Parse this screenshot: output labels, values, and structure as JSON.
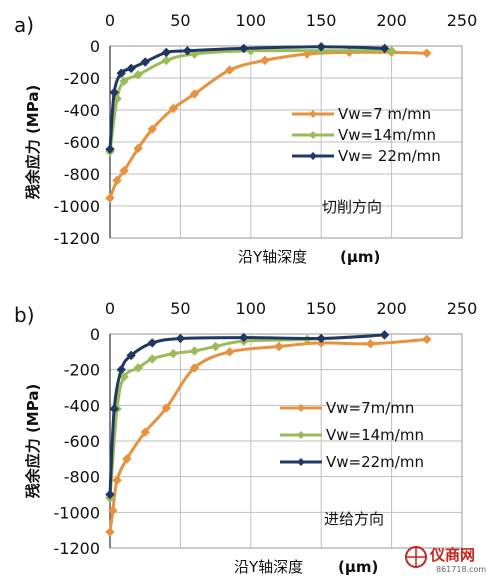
{
  "chart_data": [
    {
      "type": "line",
      "panel_label": "a)",
      "x_ticks": [
        "0",
        "50",
        "100",
        "150",
        "200",
        "250"
      ],
      "y_ticks": [
        "0",
        "-200",
        "-400",
        "-600",
        "-800",
        "-1000",
        "-1200"
      ],
      "xlim": [
        0,
        250
      ],
      "ylim": [
        -1200,
        0
      ],
      "grid": true,
      "xlabel": "沿Y轴深度",
      "xunit": "(μm)",
      "ylabel": "残余应力 (MPa)",
      "annotation": "切削方向",
      "legend_position": "middle-right",
      "series": [
        {
          "name": "Vw=7 m/mn",
          "color": "#e6923e",
          "x": [
            0,
            5,
            10,
            20,
            30,
            45,
            60,
            85,
            110,
            140,
            170,
            200,
            225
          ],
          "y": [
            -950,
            -840,
            -780,
            -640,
            -520,
            -390,
            -300,
            -150,
            -90,
            -50,
            -40,
            -40,
            -45
          ]
        },
        {
          "name": "Vw=14m/mn",
          "color": "#9bbb59",
          "x": [
            0,
            5,
            10,
            20,
            40,
            60,
            100,
            150,
            200
          ],
          "y": [
            -660,
            -330,
            -220,
            -180,
            -90,
            -50,
            -30,
            -30,
            -30
          ]
        },
        {
          "name": "Vw= 22m/mn",
          "color": "#1f3864",
          "x": [
            0,
            3,
            8,
            15,
            25,
            40,
            55,
            95,
            150,
            195
          ],
          "y": [
            -645,
            -290,
            -170,
            -140,
            -100,
            -40,
            -30,
            -15,
            -5,
            -15
          ]
        }
      ]
    },
    {
      "type": "line",
      "panel_label": "b)",
      "x_ticks": [
        "0",
        "50",
        "100",
        "150",
        "200",
        "250"
      ],
      "y_ticks": [
        "0",
        "-200",
        "-400",
        "-600",
        "-800",
        "-1000",
        "-1200"
      ],
      "xlim": [
        0,
        250
      ],
      "ylim": [
        -1200,
        0
      ],
      "grid": true,
      "xlabel": "沿Y轴深度",
      "xunit": "(μm)",
      "ylabel": "残余应力 (MPa)",
      "annotation": "进给方向",
      "legend_position": "middle-right",
      "series": [
        {
          "name": "Vw=7m/mn",
          "color": "#e6923e",
          "x": [
            0,
            2,
            5,
            12,
            25,
            40,
            60,
            85,
            120,
            150,
            185,
            225
          ],
          "y": [
            -1110,
            -990,
            -820,
            -700,
            -550,
            -415,
            -190,
            -100,
            -70,
            -50,
            -55,
            -30
          ]
        },
        {
          "name": "Vw=14m/mn",
          "color": "#9bbb59",
          "x": [
            0,
            5,
            10,
            20,
            30,
            45,
            60,
            75,
            95,
            140,
            195
          ],
          "y": [
            -920,
            -420,
            -240,
            -190,
            -140,
            -110,
            -95,
            -70,
            -40,
            -30,
            -5
          ]
        },
        {
          "name": "Vw=22m/mn",
          "color": "#1f3864",
          "x": [
            0,
            3,
            8,
            15,
            30,
            50,
            95,
            150,
            195
          ],
          "y": [
            -900,
            -420,
            -200,
            -120,
            -50,
            -25,
            -20,
            -25,
            -5
          ]
        }
      ]
    }
  ],
  "watermark": {
    "brand": "仪商网",
    "url": "861718.com"
  }
}
